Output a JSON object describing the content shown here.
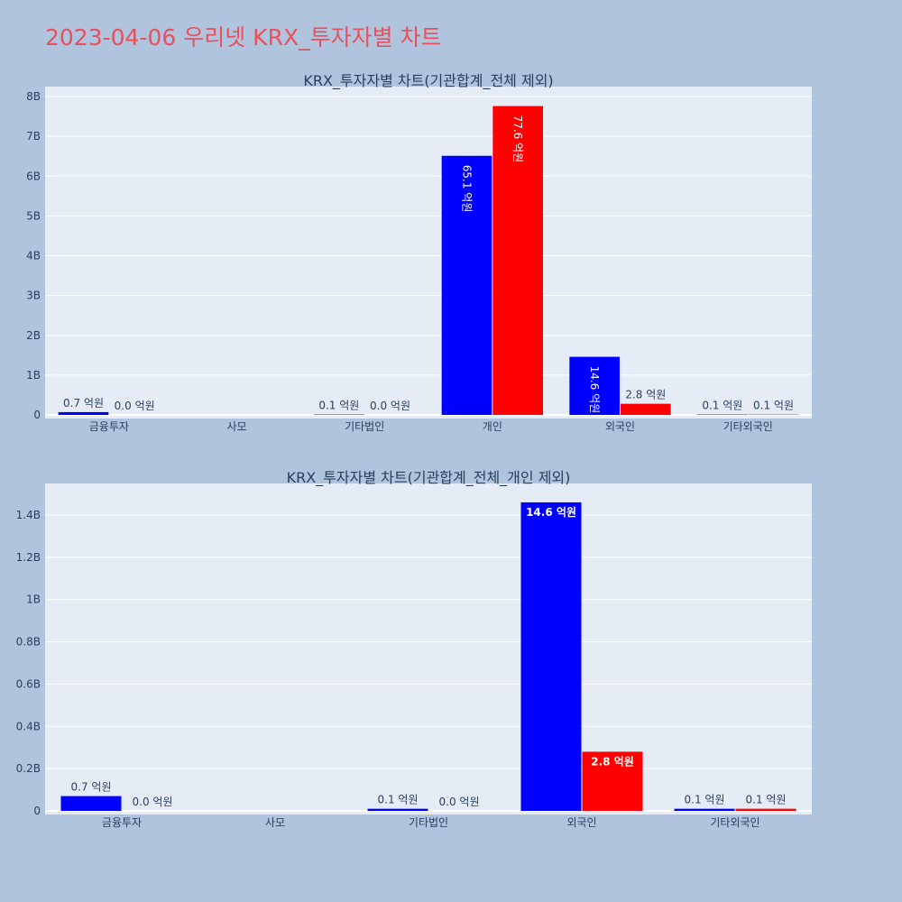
{
  "page_title": "2023-04-06 우리넷 KRX_투자자별 차트",
  "colors": {
    "series_a": "#0000ff",
    "series_b": "#ff0000",
    "plot_bg": "#e5ecf6",
    "page_bg": "#b0c4de",
    "title": "#e8505b"
  },
  "chart_data": [
    {
      "type": "bar",
      "title": "KRX_투자자별 차트(기관합계_전체 제외)",
      "categories": [
        "금융투자",
        "사모",
        "기타법인",
        "개인",
        "외국인",
        "기타외국인"
      ],
      "series": [
        {
          "values": [
            70000000,
            0,
            10000000,
            6510000000,
            1460000000,
            10000000
          ],
          "labels": [
            "0.7 억원",
            "",
            "0.1 억원",
            "65.1 억원",
            "14.6 억원",
            "0.1 억원"
          ]
        },
        {
          "values": [
            0,
            0,
            0,
            7760000000,
            280000000,
            10000000
          ],
          "labels": [
            "0.0 억원",
            "",
            "0.0 억원",
            "77.6 억원",
            "2.8 억원",
            "0.1 억원"
          ]
        }
      ],
      "ylim": [
        0,
        8000000000
      ],
      "yticks": [
        0,
        1000000000,
        2000000000,
        3000000000,
        4000000000,
        5000000000,
        6000000000,
        7000000000,
        8000000000
      ],
      "yticklabels": [
        "0",
        "1B",
        "2B",
        "3B",
        "4B",
        "5B",
        "6B",
        "7B",
        "8B"
      ],
      "grid": true
    },
    {
      "type": "bar",
      "title": "KRX_투자자별 차트(기관합계_전체_개인 제외)",
      "categories": [
        "금융투자",
        "사모",
        "기타법인",
        "외국인",
        "기타외국인"
      ],
      "series": [
        {
          "values": [
            70000000,
            0,
            10000000,
            1460000000,
            10000000
          ],
          "labels": [
            "0.7 억원",
            "",
            "0.1 억원",
            "14.6 억원",
            "0.1 억원"
          ]
        },
        {
          "values": [
            0,
            0,
            0,
            280000000,
            10000000
          ],
          "labels": [
            "0.0 억원",
            "",
            "0.0 억원",
            "2.8 억원",
            "0.1 억원"
          ]
        }
      ],
      "ylim": [
        0,
        1400000000
      ],
      "yticks": [
        0,
        200000000,
        400000000,
        600000000,
        800000000,
        1000000000,
        1200000000,
        1400000000
      ],
      "yticklabels": [
        "0",
        "0.2B",
        "0.4B",
        "0.6B",
        "0.8B",
        "1B",
        "1.2B",
        "1.4B"
      ],
      "grid": true
    }
  ]
}
